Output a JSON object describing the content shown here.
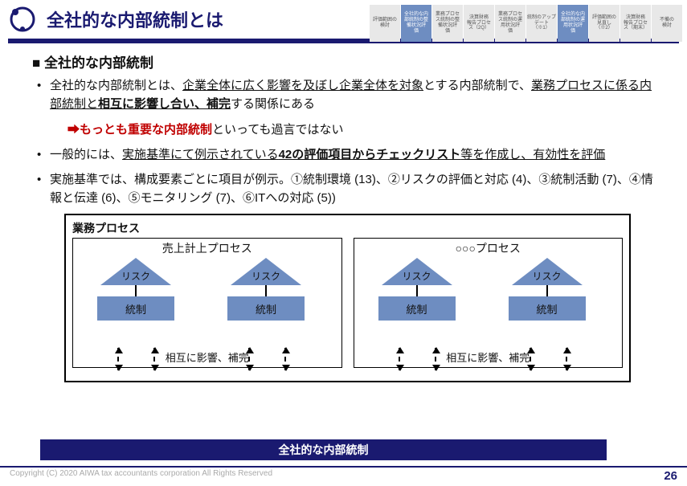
{
  "header": {
    "title": "全社的な内部統制とは",
    "tabs": [
      {
        "label": "評価範囲の\n検討",
        "active": false
      },
      {
        "label": "全社的な内\n部統制の整\n備状況評\n価",
        "active": true
      },
      {
        "label": "業務プロセ\nス統制の整\n備状況評\n価",
        "active": false
      },
      {
        "label": "決算財務\n報告プロセ\nス（2Q）",
        "active": false
      },
      {
        "label": "業務プロセ\nス統制の運\n用状況評\n価",
        "active": false
      },
      {
        "label": "統制のアップ\nデート\n（※1）",
        "active": false
      },
      {
        "label": "全社的な内\n部統制の運\n用状況評\n価",
        "active": true
      },
      {
        "label": "評価範囲の\n見直し\n（※2）",
        "active": false
      },
      {
        "label": "決算財務\n報告プロセ\nス（期末）",
        "active": false
      },
      {
        "label": "不備の\n検討",
        "active": false
      }
    ]
  },
  "section_title": "■ 全社的な内部統制",
  "bullet1": {
    "t1": "全社的な内部統制とは、",
    "u1": "企業全体に広く影響を及ぼし企業全体を対象",
    "t2": "とする内部統制で、",
    "u2": "業務プロセスに係る内部統制と",
    "b1": "相互に影響し合い、補完",
    "t3": "する関係にある"
  },
  "arrowline": {
    "red": "もっとも重要な内部統制",
    "tail": "といっても過言ではない"
  },
  "bullet2": {
    "t1": "一般的には、",
    "u1": "実施基準にて例示されている",
    "b1": "42の評価項目からチェックリスト",
    "u2": "等を作成し、有効性を評価"
  },
  "bullet3": "実施基準では、構成要素ごとに項目が例示。①統制環境 (13)、②リスクの評価と対応 (4)、③統制活動 (7)、④情報と伝達 (6)、⑤モニタリング (7)、⑥ITへの対応 (5))",
  "diagram": {
    "outer_label": "業務プロセス",
    "proc1_title": "売上計上プロセス",
    "proc2_title": "○○○プロセス",
    "risk": "リスク",
    "control": "統制",
    "caption": "相互に影響、補完",
    "colors": {
      "shape": "#6e8dc1",
      "border": "#000000"
    }
  },
  "band": "全社的な内部統制",
  "footer": {
    "copyright": "Copyright (C) 2020 AIWA tax accountants corporation All Rights Reserved",
    "page": "26"
  },
  "colors": {
    "brand": "#1a1a70",
    "accent_red": "#c00000",
    "tab_on": "#6e8dc1",
    "tab_off": "#e8e8e8"
  }
}
